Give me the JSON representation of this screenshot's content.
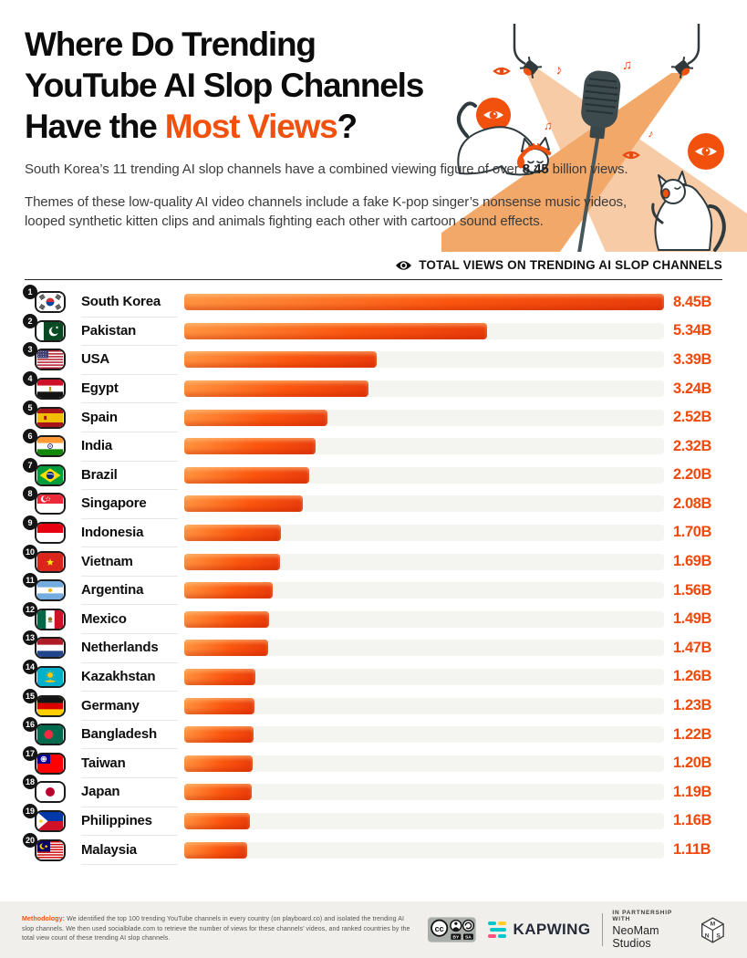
{
  "page": {
    "title_line1": "Where Do Trending",
    "title_line2": "YouTube AI Slop Channels",
    "title_line3_prefix": "Have the ",
    "title_line3_highlight": "Most Views",
    "title_line3_suffix": "?",
    "intro_1_prefix": "South Korea’s 11 trending AI slop channels have a combined viewing figure of over ",
    "intro_1_bold": "8.45",
    "intro_1_suffix": " billion views.",
    "intro_2": "Themes of these low-quality AI video channels include a fake K-pop singer’s nonsense music videos, looped synthetic kitten clips and animals fighting each other with cartoon sound effects."
  },
  "chart_header": {
    "icon": "eye-icon",
    "label": "TOTAL VIEWS ON TRENDING AI SLOP CHANNELS"
  },
  "chart_data": {
    "type": "bar",
    "orientation": "horizontal",
    "title": "TOTAL VIEWS ON TRENDING AI SLOP CHANNELS",
    "unit": "billions of views",
    "xlim": [
      0,
      8.45
    ],
    "max_value": 8.45,
    "gridlines": false,
    "categories": [
      "South Korea",
      "Pakistan",
      "USA",
      "Egypt",
      "Spain",
      "India",
      "Brazil",
      "Singapore",
      "Indonesia",
      "Vietnam",
      "Argentina",
      "Mexico",
      "Netherlands",
      "Kazakhstan",
      "Germany",
      "Bangladesh",
      "Taiwan",
      "Japan",
      "Philippines",
      "Malaysia"
    ],
    "values": [
      8.45,
      5.34,
      3.39,
      3.24,
      2.52,
      2.32,
      2.2,
      2.08,
      1.7,
      1.69,
      1.56,
      1.49,
      1.47,
      1.26,
      1.23,
      1.22,
      1.2,
      1.19,
      1.16,
      1.11
    ],
    "rows": [
      {
        "rank": 1,
        "country": "South Korea",
        "flag": "kr",
        "value": 8.45,
        "label": "8.45B"
      },
      {
        "rank": 2,
        "country": "Pakistan",
        "flag": "pk",
        "value": 5.34,
        "label": "5.34B"
      },
      {
        "rank": 3,
        "country": "USA",
        "flag": "us",
        "value": 3.39,
        "label": "3.39B"
      },
      {
        "rank": 4,
        "country": "Egypt",
        "flag": "eg",
        "value": 3.24,
        "label": "3.24B"
      },
      {
        "rank": 5,
        "country": "Spain",
        "flag": "es",
        "value": 2.52,
        "label": "2.52B"
      },
      {
        "rank": 6,
        "country": "India",
        "flag": "in",
        "value": 2.32,
        "label": "2.32B"
      },
      {
        "rank": 7,
        "country": "Brazil",
        "flag": "br",
        "value": 2.2,
        "label": "2.20B"
      },
      {
        "rank": 8,
        "country": "Singapore",
        "flag": "sg",
        "value": 2.08,
        "label": "2.08B"
      },
      {
        "rank": 9,
        "country": "Indonesia",
        "flag": "id",
        "value": 1.7,
        "label": "1.70B"
      },
      {
        "rank": 10,
        "country": "Vietnam",
        "flag": "vn",
        "value": 1.69,
        "label": "1.69B"
      },
      {
        "rank": 11,
        "country": "Argentina",
        "flag": "ar",
        "value": 1.56,
        "label": "1.56B"
      },
      {
        "rank": 12,
        "country": "Mexico",
        "flag": "mx",
        "value": 1.49,
        "label": "1.49B"
      },
      {
        "rank": 13,
        "country": "Netherlands",
        "flag": "nl",
        "value": 1.47,
        "label": "1.47B"
      },
      {
        "rank": 14,
        "country": "Kazakhstan",
        "flag": "kz",
        "value": 1.26,
        "label": "1.26B"
      },
      {
        "rank": 15,
        "country": "Germany",
        "flag": "de",
        "value": 1.23,
        "label": "1.23B"
      },
      {
        "rank": 16,
        "country": "Bangladesh",
        "flag": "bd",
        "value": 1.22,
        "label": "1.22B"
      },
      {
        "rank": 17,
        "country": "Taiwan",
        "flag": "tw",
        "value": 1.2,
        "label": "1.20B"
      },
      {
        "rank": 18,
        "country": "Japan",
        "flag": "jp",
        "value": 1.19,
        "label": "1.19B"
      },
      {
        "rank": 19,
        "country": "Philippines",
        "flag": "ph",
        "value": 1.16,
        "label": "1.16B"
      },
      {
        "rank": 20,
        "country": "Malaysia",
        "flag": "my",
        "value": 1.11,
        "label": "1.11B"
      }
    ]
  },
  "footer": {
    "methodology_label": "Methodology:",
    "methodology_text": " We identified the top 100 trending YouTube channels in every country (on playboard.co) and isolated the trending AI slop channels. We then used socialblade.com to retrieve the number of views for these channels’ videos, and ranked countries by the total view count of these trending AI slop channels.",
    "license": {
      "cc": "cc",
      "by": "BY",
      "sa": "SA"
    },
    "kapwing": "KAPWING",
    "partnership_line1": "IN PARTNERSHIP WITH",
    "partnership_line2": "NeoMam Studios",
    "nms": {
      "top": "M",
      "left": "N",
      "right": "S"
    }
  },
  "colors": {
    "accent_orange": "#f2500d",
    "value_text": "#f1490c",
    "bar_gradient": [
      "#ff9440",
      "#fb560f",
      "#e93c0b"
    ],
    "bar_track": "#f4f4f1",
    "footer_bg": "#f0efeb",
    "title_text": "#0c0c0c"
  }
}
